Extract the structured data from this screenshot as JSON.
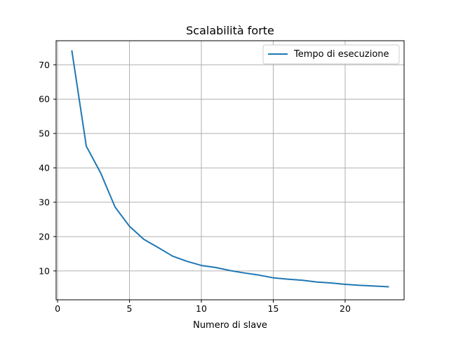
{
  "chart_data": {
    "type": "line",
    "title": "Scalabilità forte",
    "xlabel": "Numero di slave",
    "ylabel": "",
    "xlim": [
      -0.1,
      24.1
    ],
    "ylim": [
      1.6,
      77.0
    ],
    "xticks": [
      0,
      5,
      10,
      15,
      20
    ],
    "yticks": [
      10,
      20,
      30,
      40,
      50,
      60,
      70
    ],
    "grid": true,
    "legend_position": "top-right",
    "series": [
      {
        "name": "Tempo di esecuzione",
        "color": "#1f77b4",
        "x": [
          1,
          2,
          3,
          4,
          5,
          6,
          7,
          8,
          9,
          10,
          11,
          12,
          13,
          14,
          15,
          16,
          17,
          18,
          19,
          20,
          21,
          22,
          23
        ],
        "y": [
          74.0,
          46.3,
          38.5,
          28.6,
          23.0,
          19.2,
          16.8,
          14.3,
          12.8,
          11.6,
          11.0,
          10.1,
          9.4,
          8.8,
          8.0,
          7.6,
          7.3,
          6.8,
          6.5,
          6.1,
          5.8,
          5.6,
          5.4
        ]
      }
    ]
  }
}
